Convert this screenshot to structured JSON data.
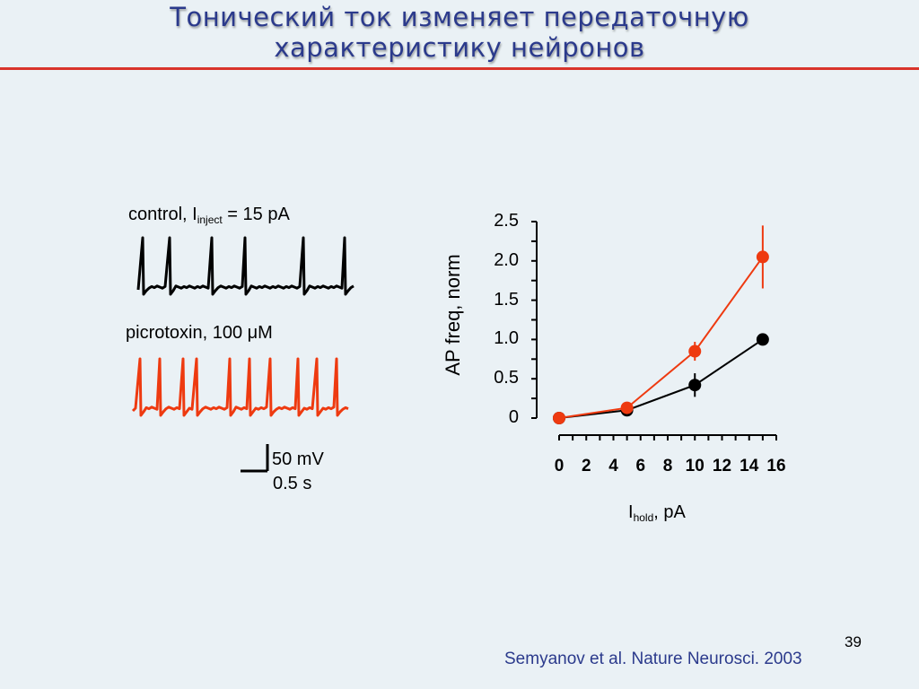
{
  "slide": {
    "title_line1": "Тонический ток изменяет передаточную",
    "title_line2": "характеристику нейронов",
    "slide_number": "39",
    "citation": "Semyanov et al. Nature Neurosci. 2003"
  },
  "traces": {
    "control_label_main": "control, I",
    "control_label_sub": "inject",
    "control_label_tail": " = 15 pA",
    "control_color": "#000000",
    "picro_label": "picrotoxin, 100 μM",
    "picro_color": "#ee3a10",
    "scale_voltage": "50 mV",
    "scale_time": "0.5 s"
  },
  "chart_data": {
    "type": "line",
    "ylabel": "AP freq, norm",
    "xlabel_main": "I",
    "xlabel_sub": "hold",
    "xlabel_tail": ", pA",
    "ylim": [
      0,
      2.5
    ],
    "xlim": [
      0,
      16
    ],
    "y_ticks": [
      "0",
      "0.5",
      "1.0",
      "1.5",
      "2.0",
      "2.5"
    ],
    "x_ticks": [
      "0",
      "2",
      "4",
      "6",
      "8",
      "10",
      "12",
      "14",
      "16"
    ],
    "series": [
      {
        "color": "#000000",
        "x": [
          0,
          5,
          10,
          15
        ],
        "y": [
          0.0,
          0.1,
          0.42,
          1.0
        ],
        "err": [
          0,
          0,
          0.15,
          0
        ]
      },
      {
        "color": "#ee3a10",
        "x": [
          0,
          5,
          10,
          15
        ],
        "y": [
          0.0,
          0.13,
          0.85,
          2.05
        ],
        "err": [
          0,
          0,
          0.12,
          0.4
        ]
      }
    ]
  }
}
